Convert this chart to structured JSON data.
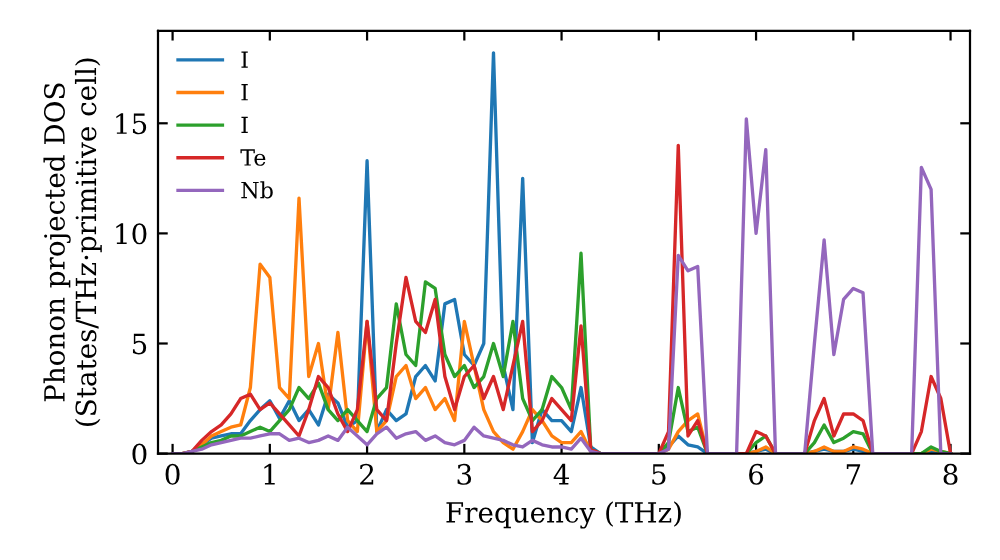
{
  "chart_data": {
    "type": "line",
    "xlabel": "Frequency (THz)",
    "ylabel": "Phonon projected DOS\n(States/THz·primitive cell)",
    "x": [
      0,
      0.1,
      0.2,
      0.3,
      0.4,
      0.5,
      0.6,
      0.7,
      0.8,
      0.9,
      1.0,
      1.1,
      1.2,
      1.3,
      1.4,
      1.5,
      1.6,
      1.7,
      1.8,
      1.9,
      2.0,
      2.1,
      2.2,
      2.3,
      2.4,
      2.5,
      2.6,
      2.7,
      2.8,
      2.9,
      3.0,
      3.1,
      3.2,
      3.3,
      3.4,
      3.5,
      3.6,
      3.7,
      3.8,
      3.9,
      4.0,
      4.1,
      4.2,
      4.3,
      4.4,
      4.5,
      4.6,
      4.7,
      4.8,
      4.9,
      5.0,
      5.1,
      5.2,
      5.3,
      5.4,
      5.5,
      5.6,
      5.7,
      5.8,
      5.9,
      6.0,
      6.1,
      6.2,
      6.3,
      6.4,
      6.5,
      6.6,
      6.7,
      6.8,
      6.9,
      7.0,
      7.1,
      7.2,
      7.3,
      7.4,
      7.5,
      7.6,
      7.7,
      7.8,
      7.9,
      8.0
    ],
    "series": [
      {
        "name": "I",
        "color": "#1f77b4",
        "values": [
          null,
          null,
          0.1,
          0.4,
          0.7,
          0.8,
          0.9,
          0.9,
          1.5,
          2.0,
          2.4,
          1.6,
          2.4,
          1.5,
          2.0,
          1.3,
          2.7,
          2.3,
          1.2,
          1.5,
          13.3,
          1.0,
          2.0,
          1.5,
          1.8,
          3.5,
          4.0,
          3.3,
          6.8,
          7.0,
          4.5,
          4.0,
          5.0,
          18.2,
          4.0,
          2.0,
          12.5,
          0.5,
          2.0,
          1.5,
          1.5,
          1.0,
          3.0,
          0.3,
          0,
          0,
          0,
          0,
          0,
          0,
          0,
          0.3,
          0.8,
          0.4,
          0.3,
          0,
          0,
          0,
          0,
          0,
          0.1,
          0.2,
          0,
          0,
          0,
          0,
          0.1,
          0.2,
          0.1,
          0.1,
          0.2,
          0.1,
          0,
          0,
          0,
          0,
          0,
          0,
          0.1,
          0,
          0
        ]
      },
      {
        "name": "I",
        "color": "#ff7f0e",
        "values": [
          0,
          0,
          0.1,
          0.4,
          0.8,
          1.0,
          1.2,
          1.3,
          3.0,
          8.6,
          8.0,
          3.0,
          2.5,
          11.6,
          3.5,
          5.0,
          2.0,
          5.5,
          1.5,
          1.0,
          6.0,
          1.0,
          1.5,
          3.5,
          4.0,
          2.5,
          3.0,
          2.0,
          2.5,
          1.5,
          6.0,
          4.0,
          2.0,
          1.0,
          0.5,
          0.2,
          1.0,
          2.0,
          1.5,
          0.8,
          0.5,
          0.5,
          1.0,
          0.1,
          0,
          0,
          0,
          0,
          0,
          0,
          0,
          0.2,
          1.0,
          1.5,
          1.8,
          0,
          0,
          0,
          0,
          0,
          0.1,
          0.3,
          0,
          0,
          0,
          0,
          0.1,
          0.3,
          0.1,
          0.1,
          0.3,
          0.2,
          0,
          0,
          0,
          0,
          0,
          0,
          0.2,
          0.1,
          0
        ]
      },
      {
        "name": "I",
        "color": "#2ca02c",
        "values": [
          0,
          0,
          0.1,
          0.3,
          0.5,
          0.6,
          0.8,
          0.8,
          1.0,
          1.2,
          1.0,
          1.5,
          2.0,
          3.0,
          2.5,
          3.2,
          2.0,
          1.5,
          2.0,
          1.5,
          1.0,
          2.5,
          3.0,
          6.8,
          4.5,
          4.0,
          7.8,
          7.5,
          4.5,
          3.5,
          4.0,
          3.0,
          3.5,
          5.0,
          3.5,
          6.0,
          2.5,
          1.5,
          2.0,
          3.5,
          3.0,
          2.0,
          9.1,
          0.2,
          0,
          0,
          0,
          0,
          0,
          0,
          0,
          0.5,
          3.0,
          1.0,
          1.2,
          0,
          0,
          0,
          0,
          0,
          0.5,
          0.8,
          0,
          0,
          0,
          0,
          0.5,
          1.3,
          0.5,
          0.7,
          1.0,
          0.9,
          0,
          0,
          0,
          0,
          0,
          0,
          0.3,
          0.1,
          0
        ]
      },
      {
        "name": "Te",
        "color": "#d62728",
        "values": [
          0,
          0,
          0.1,
          0.6,
          1.0,
          1.3,
          1.8,
          2.5,
          2.7,
          2.0,
          2.3,
          1.8,
          1.3,
          0.8,
          2.0,
          3.5,
          3.0,
          1.8,
          1.0,
          2.0,
          6.0,
          2.0,
          1.5,
          5.0,
          8.0,
          6.0,
          5.5,
          7.0,
          3.5,
          2.0,
          3.5,
          4.0,
          2.5,
          3.5,
          2.0,
          4.0,
          6.0,
          1.0,
          1.5,
          2.5,
          2.0,
          1.5,
          5.8,
          0.2,
          0,
          0,
          0,
          0,
          0,
          0,
          0,
          1.0,
          14.0,
          0.8,
          1.5,
          0,
          0,
          0,
          0,
          0,
          1.0,
          0.8,
          0,
          0,
          0,
          0,
          1.5,
          2.5,
          0.8,
          1.8,
          1.8,
          1.5,
          0,
          0,
          0,
          0,
          0,
          1.0,
          3.5,
          2.5,
          0
        ]
      },
      {
        "name": "Nb",
        "color": "#9467bd",
        "values": [
          0,
          0,
          0.1,
          0.2,
          0.4,
          0.5,
          0.6,
          0.7,
          0.7,
          0.8,
          0.9,
          0.9,
          0.6,
          0.7,
          0.5,
          0.6,
          0.8,
          0.6,
          1.2,
          0.8,
          0.4,
          0.9,
          1.2,
          0.7,
          0.9,
          1.0,
          0.6,
          0.8,
          0.5,
          0.4,
          0.6,
          1.2,
          0.8,
          0.7,
          0.6,
          0.4,
          0.3,
          0.6,
          0.4,
          0.3,
          0.3,
          0.2,
          0.7,
          0.1,
          0,
          0,
          0,
          0,
          0,
          0,
          0,
          0.2,
          9.0,
          8.3,
          8.5,
          0,
          0,
          0,
          0,
          15.2,
          10.0,
          13.8,
          0,
          0,
          0,
          0,
          5.0,
          9.7,
          4.5,
          7.0,
          7.5,
          7.3,
          0,
          0,
          0,
          0,
          0,
          13.0,
          12.0,
          0,
          0
        ]
      }
    ],
    "xlim": [
      -0.15,
      8.2
    ],
    "ylim": [
      0,
      19.2
    ],
    "xticks": [
      0,
      1,
      2,
      3,
      4,
      5,
      6,
      7,
      8
    ],
    "yticks": [
      0,
      5,
      10,
      15
    ],
    "legend": "top left",
    "grid": false,
    "marker": "none",
    "line_style": "solid"
  }
}
